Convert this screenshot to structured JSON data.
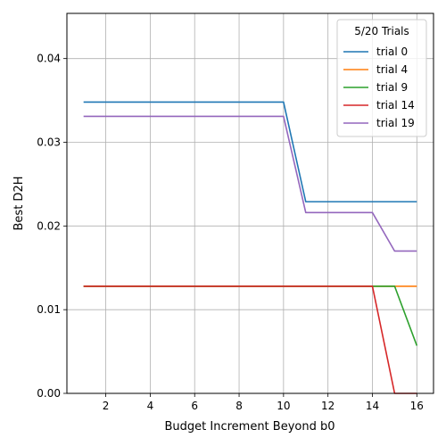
{
  "chart_data": {
    "type": "line",
    "title": "",
    "xlabel": "Budget Increment Beyond b0",
    "ylabel": "Best D2H",
    "xlim": [
      0.25,
      16.75
    ],
    "ylim": [
      0.0,
      0.0454
    ],
    "xticks": [
      2,
      4,
      6,
      8,
      10,
      12,
      14,
      16
    ],
    "yticks": [
      0.0,
      0.01,
      0.02,
      0.03,
      0.04
    ],
    "ytick_labels": [
      "0.00",
      "0.01",
      "0.02",
      "0.03",
      "0.04"
    ],
    "grid": true,
    "legend": {
      "title": "5/20 Trials",
      "placement": "top-right"
    },
    "x": [
      1,
      2,
      3,
      4,
      5,
      6,
      7,
      8,
      9,
      10,
      11,
      12,
      13,
      14,
      15,
      16
    ],
    "series": [
      {
        "name": "trial 0",
        "color": "#1f77b4",
        "values": [
          0.0348,
          0.0348,
          0.0348,
          0.0348,
          0.0348,
          0.0348,
          0.0348,
          0.0348,
          0.0348,
          0.0348,
          0.0229,
          0.0229,
          0.0229,
          0.0229,
          0.0229,
          0.0229
        ]
      },
      {
        "name": "trial 4",
        "color": "#ff7f0e",
        "values": [
          0.0128,
          0.0128,
          0.0128,
          0.0128,
          0.0128,
          0.0128,
          0.0128,
          0.0128,
          0.0128,
          0.0128,
          0.0128,
          0.0128,
          0.0128,
          0.0128,
          0.0128,
          0.0128
        ]
      },
      {
        "name": "trial 9",
        "color": "#2ca02c",
        "values": [
          0.0128,
          0.0128,
          0.0128,
          0.0128,
          0.0128,
          0.0128,
          0.0128,
          0.0128,
          0.0128,
          0.0128,
          0.0128,
          0.0128,
          0.0128,
          0.0128,
          0.0128,
          0.0057
        ]
      },
      {
        "name": "trial 14",
        "color": "#d62728",
        "values": [
          0.0128,
          0.0128,
          0.0128,
          0.0128,
          0.0128,
          0.0128,
          0.0128,
          0.0128,
          0.0128,
          0.0128,
          0.0128,
          0.0128,
          0.0128,
          0.0128,
          0.0,
          0.0
        ]
      },
      {
        "name": "trial 19",
        "color": "#9467bd",
        "values": [
          0.0331,
          0.0331,
          0.0331,
          0.0331,
          0.0331,
          0.0331,
          0.0331,
          0.0331,
          0.0331,
          0.0331,
          0.0216,
          0.0216,
          0.0216,
          0.0216,
          0.017,
          0.017
        ]
      }
    ]
  }
}
